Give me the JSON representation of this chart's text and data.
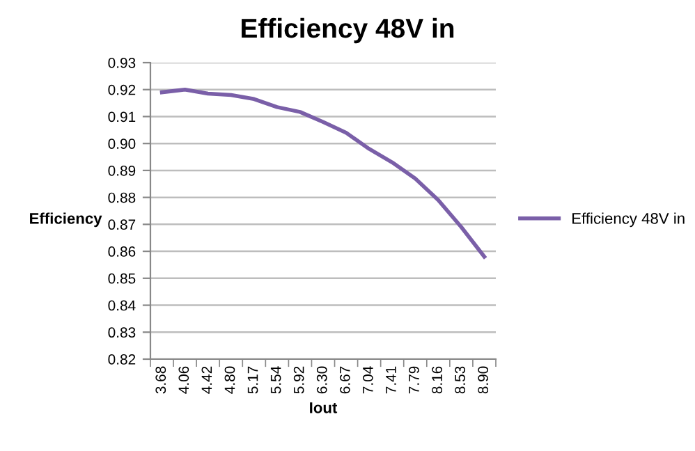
{
  "chart_data": {
    "type": "line",
    "title": "Efficiency 48V in",
    "xlabel": "Iout",
    "ylabel": "Efficiency",
    "categories": [
      "3.68",
      "4.06",
      "4.42",
      "4.80",
      "5.17",
      "5.54",
      "5.92",
      "6.30",
      "6.67",
      "7.04",
      "7.41",
      "7.79",
      "8.16",
      "8.53",
      "8.90"
    ],
    "series": [
      {
        "name": "Efficiency 48V in",
        "color": "#7a5fa8",
        "values": [
          0.919,
          0.92,
          0.9185,
          0.918,
          0.9165,
          0.9135,
          0.9117,
          0.908,
          0.904,
          0.898,
          0.893,
          0.887,
          0.879,
          0.869,
          0.858
        ]
      }
    ],
    "ylim": [
      0.82,
      0.93
    ],
    "yticks": [
      0.82,
      0.83,
      0.84,
      0.85,
      0.86,
      0.87,
      0.88,
      0.89,
      {
        "value": 0.9,
        "label": "0.90"
      },
      0.91,
      0.92,
      0.93
    ],
    "grid": "y",
    "legend": "right",
    "marker": "none",
    "line_style": "solid"
  }
}
